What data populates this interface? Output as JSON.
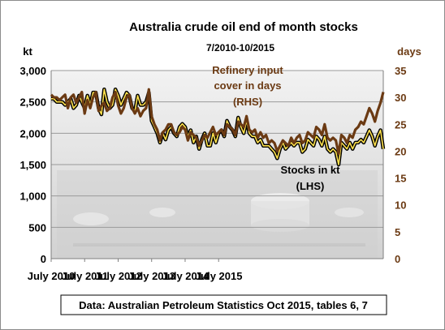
{
  "chart_data": {
    "type": "line",
    "title": "Australia crude oil end of month stocks",
    "subtitle": "7/2010-10/2015",
    "ylabel_left": "kt",
    "ylabel_right": "days",
    "ylim_left": [
      0,
      3000
    ],
    "ylim_right": [
      0,
      35
    ],
    "y_ticks_left": [
      "0",
      "500",
      "1,000",
      "1,500",
      "2,000",
      "2,500",
      "3,000"
    ],
    "y_ticks_right": [
      "0",
      "5",
      "10",
      "15",
      "20",
      "25",
      "30",
      "35"
    ],
    "x_ticks": [
      "July 2010",
      "July 2011",
      "July 2012",
      "July 2013",
      "July 2014",
      "July 2015"
    ],
    "grid": true,
    "source_note": "Data: Australian Petroleum Statistics Oct 2015, tables 6, 7",
    "annotations": [
      {
        "lines": [
          "Refinery input",
          "cover in days",
          "(RHS)"
        ]
      },
      {
        "lines": [
          "Stocks in kt",
          "(LHS)"
        ]
      }
    ],
    "series": [
      {
        "axis": "left",
        "color": "#000000",
        "values": [
          2550,
          2550,
          2500,
          2500,
          2500,
          2450,
          2500,
          2550,
          2400,
          2450,
          2600,
          2500,
          2400,
          2600,
          2450,
          2650,
          2650,
          2400,
          2300,
          2700,
          2500,
          2400,
          2450,
          2700,
          2600,
          2450,
          2550,
          2650,
          2600,
          2400,
          2350,
          2600,
          2450,
          2450,
          2500,
          2650,
          2200,
          2100,
          2000,
          1850,
          2000,
          1900,
          2050,
          2100,
          2000,
          1950,
          2100,
          2150,
          2100,
          1950,
          2050,
          1850,
          1950,
          1750,
          1900,
          2000,
          1800,
          1800,
          2000,
          1850,
          2000,
          2050,
          1950,
          2200,
          2100,
          2050,
          1950,
          2250,
          2100,
          2000,
          2200,
          2000,
          1950,
          1950,
          1850,
          1900,
          1800,
          1800,
          1800,
          1750,
          1700,
          1600,
          1750,
          1850,
          1750,
          1800,
          1850,
          1800,
          1850,
          1850,
          1700,
          1750,
          1900,
          1850,
          1800,
          1950,
          1900,
          1800,
          1950,
          1750,
          1700,
          1750,
          1700,
          1500,
          1850,
          1800,
          1750,
          1850,
          1750,
          1850,
          1850,
          1900,
          1850,
          1950,
          2050,
          1950,
          1800,
          1950,
          2050,
          1750
        ]
      },
      {
        "axis": "right",
        "color": "#6b3a13",
        "values": [
          30.5,
          30.0,
          30.0,
          29.5,
          30.0,
          30.5,
          28.0,
          30.0,
          30.5,
          29.0,
          30.0,
          31.0,
          27.0,
          29.5,
          28.0,
          30.0,
          31.0,
          27.5,
          28.5,
          29.0,
          27.5,
          28.0,
          30.0,
          31.0,
          28.5,
          27.0,
          28.0,
          30.0,
          30.5,
          28.0,
          27.0,
          28.0,
          26.5,
          27.5,
          28.0,
          31.5,
          26.5,
          25.0,
          24.0,
          22.0,
          23.5,
          24.0,
          25.0,
          25.0,
          23.5,
          23.0,
          23.5,
          24.5,
          24.0,
          22.0,
          23.5,
          23.0,
          22.5,
          21.0,
          22.0,
          23.0,
          22.5,
          23.5,
          24.5,
          23.0,
          23.5,
          24.0,
          23.0,
          25.0,
          24.5,
          24.0,
          23.0,
          25.5,
          25.0,
          24.5,
          26.5,
          24.0,
          23.5,
          24.0,
          22.5,
          23.5,
          22.5,
          23.0,
          21.5,
          22.0,
          21.5,
          20.0,
          21.0,
          22.0,
          21.5,
          21.0,
          22.5,
          21.5,
          22.5,
          23.0,
          21.5,
          22.0,
          23.5,
          23.0,
          22.5,
          24.5,
          24.0,
          23.0,
          25.0,
          22.5,
          22.0,
          22.5,
          22.0,
          19.5,
          23.0,
          22.5,
          21.5,
          23.0,
          22.5,
          24.0,
          24.5,
          25.5,
          25.0,
          26.5,
          28.0,
          27.0,
          25.5,
          27.5,
          29.0,
          31.0
        ]
      }
    ]
  }
}
